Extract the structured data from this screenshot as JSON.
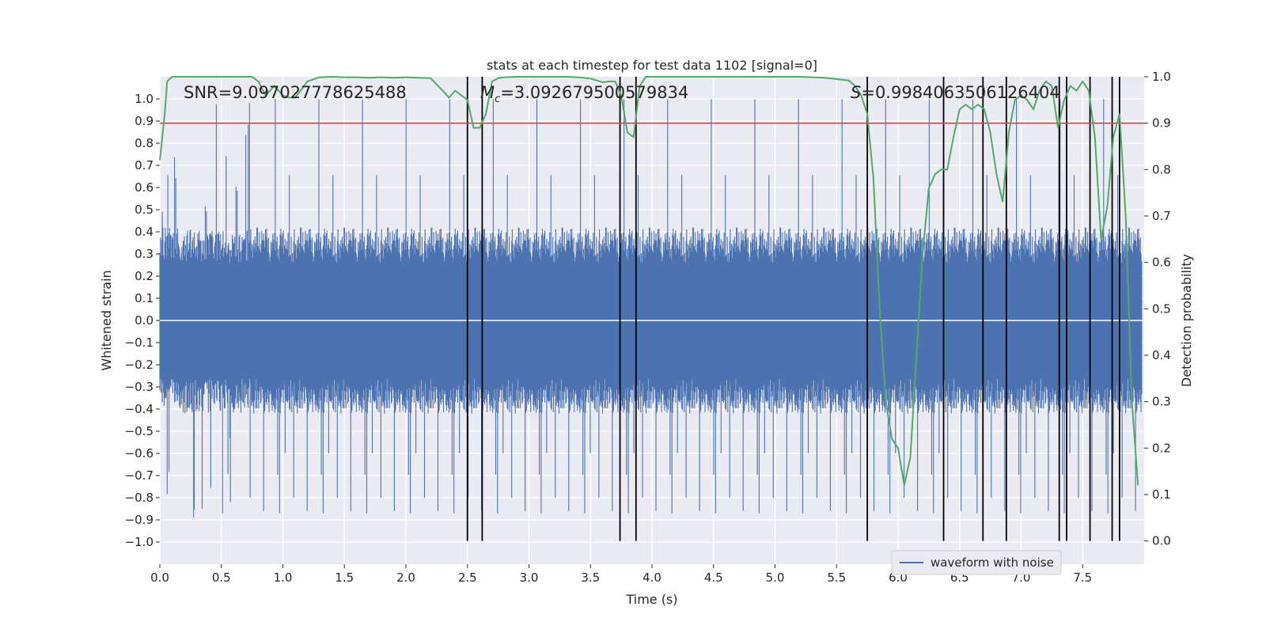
{
  "chart_data": {
    "type": "line",
    "title": "stats at each timestep for test data 1102 [signal=0]",
    "xlabel": "Time (s)",
    "ylabel": "Whitened strain",
    "y2label": "Detection probability",
    "xlim": [
      0.0,
      8.0
    ],
    "ylim": [
      -1.1,
      1.1
    ],
    "y2lim": [
      -0.05,
      1.0
    ],
    "xticks": [
      0.0,
      0.5,
      1.0,
      1.5,
      2.0,
      2.5,
      3.0,
      3.5,
      4.0,
      4.5,
      5.0,
      5.5,
      6.0,
      6.5,
      7.0,
      7.5
    ],
    "xtick_labels": [
      "0.0",
      "0.5",
      "1.0",
      "1.5",
      "2.0",
      "2.5",
      "3.0",
      "3.5",
      "4.0",
      "4.5",
      "5.0",
      "5.5",
      "6.0",
      "6.5",
      "7.0",
      "7.5"
    ],
    "yticks": [
      -1.0,
      -0.9,
      -0.8,
      -0.7,
      -0.6,
      -0.5,
      -0.4,
      -0.3,
      -0.2,
      -0.1,
      0.0,
      0.1,
      0.2,
      0.3,
      0.4,
      0.5,
      0.6,
      0.7,
      0.8,
      0.9,
      1.0
    ],
    "ytick_labels": [
      "−1.0",
      "−0.9",
      "−0.8",
      "−0.7",
      "−0.6",
      "−0.5",
      "−0.4",
      "−0.3",
      "−0.2",
      "−0.1",
      "0.0",
      "0.1",
      "0.2",
      "0.3",
      "0.4",
      "0.5",
      "0.6",
      "0.7",
      "0.8",
      "0.9",
      "1.0"
    ],
    "y2ticks": [
      0.0,
      0.1,
      0.2,
      0.3,
      0.4,
      0.5,
      0.6,
      0.7,
      0.8,
      0.9,
      1.0
    ],
    "y2tick_labels": [
      "0.0",
      "0.1",
      "0.2",
      "0.3",
      "0.4",
      "0.5",
      "0.6",
      "0.7",
      "0.8",
      "0.9",
      "1.0"
    ],
    "annotations": {
      "snr": "SNR=9.097027778625488",
      "mc_symbol": "M",
      "mc_sub": "c",
      "mc_value": "=3.092679500579834",
      "s_symbol": "S",
      "s_value": "=0.9984063506126404"
    },
    "threshold_probability": 0.9,
    "detection_times": [
      2.5,
      2.62,
      3.74,
      3.87,
      5.75,
      6.37,
      6.69,
      6.88,
      7.31,
      7.37,
      7.56,
      7.74,
      7.8
    ],
    "series": [
      {
        "name": "waveform with noise",
        "kind": "noise-envelope",
        "color": "#4c72b0",
        "core_amplitude": 0.35,
        "max_peak": 1.0,
        "min_trough": -0.97
      },
      {
        "name": "detection probability",
        "axis": "right",
        "color": "#55a868",
        "x": [
          0.0,
          0.04,
          0.06,
          0.1,
          0.15,
          0.2,
          0.3,
          0.4,
          0.5,
          0.6,
          0.7,
          0.75,
          0.8,
          0.86,
          0.93,
          1.0,
          1.05,
          1.1,
          1.2,
          1.3,
          1.4,
          1.5,
          1.6,
          1.7,
          1.8,
          1.9,
          2.0,
          2.1,
          2.2,
          2.3,
          2.35,
          2.4,
          2.45,
          2.5,
          2.55,
          2.6,
          2.65,
          2.7,
          2.75,
          2.8,
          2.9,
          3.0,
          3.1,
          3.2,
          3.3,
          3.4,
          3.5,
          3.6,
          3.65,
          3.7,
          3.75,
          3.8,
          3.85,
          3.9,
          3.95,
          4.0,
          4.1,
          4.2,
          4.3,
          4.4,
          4.5,
          4.6,
          4.7,
          4.8,
          4.9,
          5.0,
          5.1,
          5.2,
          5.3,
          5.4,
          5.5,
          5.6,
          5.65,
          5.7,
          5.75,
          5.8,
          5.85,
          5.9,
          5.95,
          6.0,
          6.05,
          6.1,
          6.15,
          6.2,
          6.25,
          6.3,
          6.35,
          6.4,
          6.45,
          6.5,
          6.55,
          6.6,
          6.65,
          6.7,
          6.75,
          6.8,
          6.85,
          6.9,
          6.95,
          7.0,
          7.05,
          7.1,
          7.15,
          7.2,
          7.25,
          7.3,
          7.35,
          7.4,
          7.45,
          7.5,
          7.55,
          7.6,
          7.65,
          7.7,
          7.75,
          7.8,
          7.85,
          7.9,
          7.95
        ],
        "y": [
          0.82,
          0.92,
          0.99,
          1.0,
          1.0,
          1.0,
          1.0,
          1.0,
          1.0,
          1.0,
          1.0,
          1.0,
          0.99,
          0.96,
          0.98,
          0.96,
          0.955,
          0.955,
          0.99,
          0.999,
          1.0,
          0.999,
          0.999,
          0.998,
          0.999,
          0.998,
          0.999,
          0.998,
          0.997,
          0.97,
          0.955,
          0.97,
          0.96,
          0.95,
          0.89,
          0.89,
          0.92,
          0.99,
          0.997,
          0.999,
          1.0,
          1.0,
          1.0,
          1.0,
          1.0,
          0.999,
          0.996,
          0.988,
          0.99,
          0.99,
          0.96,
          0.88,
          0.87,
          0.98,
          1.0,
          1.0,
          1.0,
          1.0,
          1.0,
          1.0,
          1.0,
          1.0,
          1.0,
          1.0,
          1.0,
          1.0,
          1.0,
          1.0,
          0.999,
          0.998,
          0.995,
          0.992,
          0.98,
          0.96,
          0.92,
          0.78,
          0.5,
          0.3,
          0.22,
          0.2,
          0.12,
          0.18,
          0.4,
          0.62,
          0.76,
          0.79,
          0.8,
          0.8,
          0.87,
          0.93,
          0.94,
          0.93,
          0.94,
          0.93,
          0.88,
          0.79,
          0.73,
          0.88,
          0.95,
          0.96,
          0.95,
          0.93,
          0.97,
          0.99,
          0.98,
          0.89,
          0.95,
          0.98,
          0.97,
          0.99,
          0.97,
          0.87,
          0.65,
          0.72,
          0.87,
          0.92,
          0.7,
          0.3,
          0.12
        ]
      }
    ],
    "legend": [
      {
        "label": "waveform with noise",
        "color": "#4c72b0"
      }
    ],
    "legend_position": "lower-right",
    "grid": true
  }
}
